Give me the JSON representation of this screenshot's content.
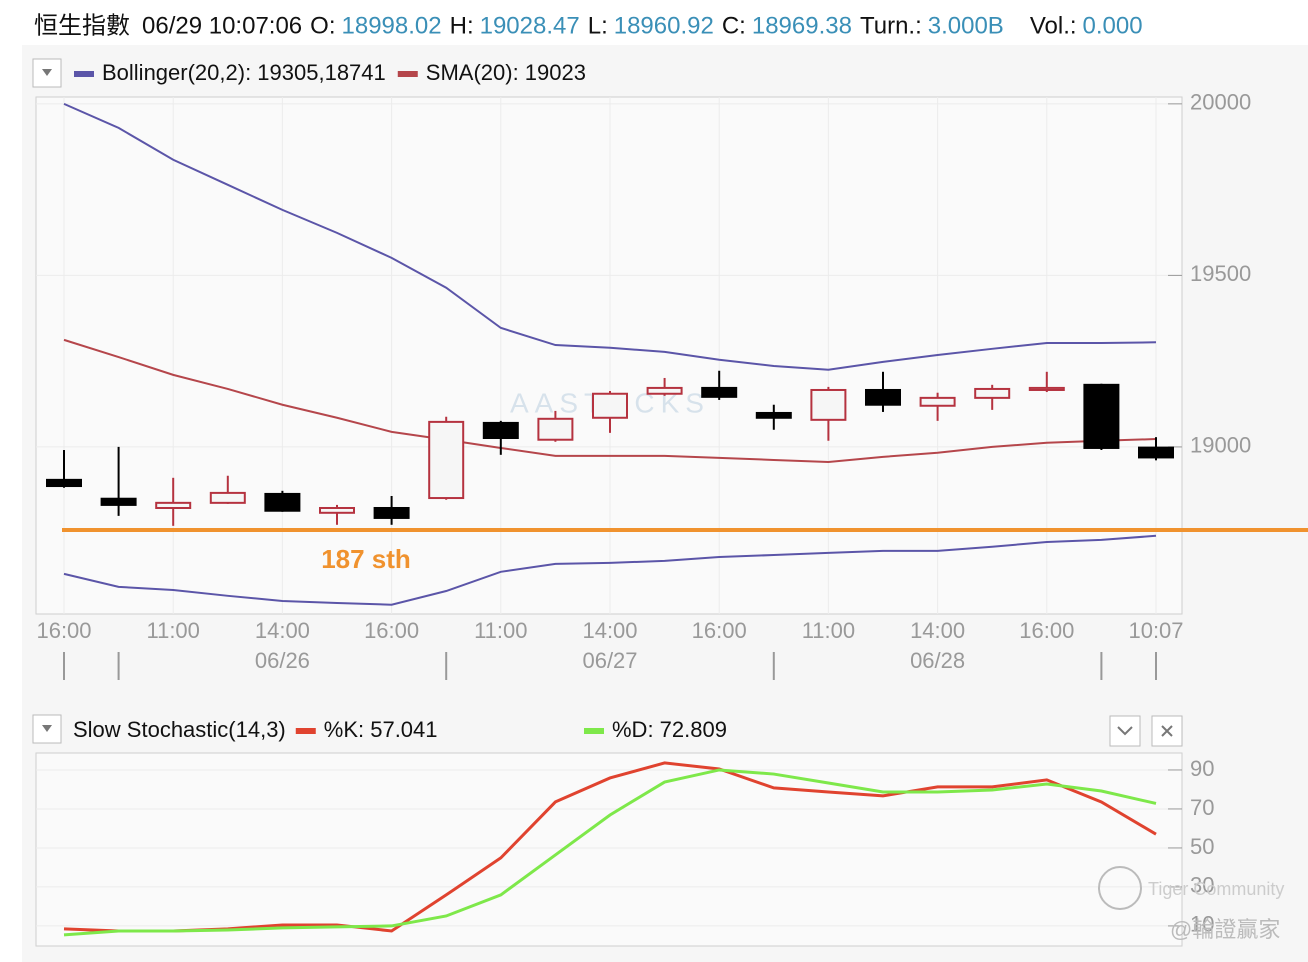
{
  "header": {
    "symbol": "恒生指數",
    "time": "06/29 10:07:06",
    "fields": [
      {
        "label": "O:",
        "value": "18998.02"
      },
      {
        "label": "H:",
        "value": "19028.47"
      },
      {
        "label": "L:",
        "value": "18960.92"
      },
      {
        "label": "C:",
        "value": "18969.38"
      },
      {
        "label": "Turn.:",
        "value": "3.000B"
      },
      {
        "label": "Vol.:",
        "value": "0.000"
      }
    ]
  },
  "watermarks": [
    "AASTOCKS",
    "Tiger Community",
    "@輪證贏家"
  ],
  "chart_data": [
    {
      "type": "candlestick",
      "categories": [
        "16:00",
        null,
        "11:00",
        null,
        "14:00",
        null,
        "16:00",
        null,
        "11:00",
        null,
        "14:00",
        null,
        "16:00",
        null,
        "11:00",
        null,
        "14:00",
        null,
        "16:00",
        null,
        "10:07"
      ],
      "dates": [
        null,
        null,
        null,
        null,
        "06/26",
        null,
        null,
        null,
        null,
        null,
        "06/27",
        null,
        null,
        null,
        null,
        null,
        "06/28",
        null,
        null,
        null,
        null
      ],
      "open": [
        18904,
        18849,
        18822,
        18837,
        18863,
        18808,
        18822,
        18851,
        19070,
        19021,
        19085,
        19155,
        19172,
        19099,
        19079,
        19166,
        19120,
        19143,
        19166,
        19181,
        18998.02
      ],
      "high": [
        18991,
        19000,
        18910,
        18916,
        18872,
        18831,
        18857,
        19088,
        19076,
        19105,
        19163,
        19201,
        19222,
        19123,
        19175,
        19219,
        19158,
        19181,
        19219,
        19184,
        19028.47
      ],
      "low": [
        18881,
        18799,
        18770,
        18834,
        18811,
        18773,
        18773,
        18846,
        18977,
        19015,
        19041,
        19149,
        19137,
        19050,
        19018,
        19102,
        19076,
        19108,
        19160,
        18991,
        18960.92
      ],
      "close": [
        18886,
        18831,
        18837,
        18866,
        18814,
        18822,
        18793,
        19073,
        19026,
        19082,
        19155,
        19172,
        19146,
        19085,
        19166,
        19123,
        19143,
        19169,
        19172,
        18997,
        18969.38
      ],
      "up_color": "#b5323f",
      "down_color": "#000000",
      "bollinger": {
        "name": "Bollinger(20,2): 19305,18741",
        "color": "#5b55a8",
        "upper": [
          20000,
          19930,
          19837,
          19764,
          19691,
          19624,
          19551,
          19464,
          19347,
          19297,
          19289,
          19277,
          19254,
          19236,
          19225,
          19248,
          19268,
          19286,
          19303,
          19303,
          19305
        ],
        "lower": [
          18630,
          18592,
          18583,
          18566,
          18551,
          18545,
          18540,
          18580,
          18636,
          18659,
          18662,
          18668,
          18679,
          18685,
          18691,
          18697,
          18697,
          18709,
          18723,
          18729,
          18741
        ]
      },
      "sma": {
        "name": "SMA(20): 19023",
        "color": "#b5464b",
        "values": [
          19312,
          19262,
          19210,
          19169,
          19123,
          19085,
          19044,
          19021,
          18997,
          18974,
          18974,
          18974,
          18968,
          18962,
          18956,
          18971,
          18983,
          19000,
          19012,
          19018,
          19023
        ]
      },
      "hline": {
        "value": 18758,
        "label": "187 sth",
        "color": "#f0922e"
      },
      "ylim": [
        18513,
        20020
      ],
      "yticks": [
        19000,
        19500,
        20000
      ],
      "grid": true
    },
    {
      "type": "line",
      "title": "Slow Stochastic(14,3)",
      "series": [
        {
          "name": "%K: 57.041",
          "color": "#e0432f",
          "values": [
            8.5,
            7.4,
            7.4,
            8.5,
            10.5,
            10.5,
            7.4,
            25.9,
            44.9,
            73.6,
            85.9,
            93.6,
            90.5,
            80.8,
            78.7,
            76.7,
            81.3,
            81.3,
            84.9,
            73.6,
            57.041
          ]
        },
        {
          "name": "%D: 72.809",
          "color": "#7ee84a",
          "values": [
            5.4,
            7.4,
            7.4,
            7.9,
            9.0,
            9.5,
            10.0,
            15.1,
            25.9,
            46.4,
            66.9,
            83.8,
            90.0,
            87.9,
            83.3,
            78.7,
            78.7,
            79.7,
            82.8,
            79.2,
            72.809
          ]
        }
      ],
      "ylim": [
        -0.3,
        98.7
      ],
      "yticks": [
        10,
        30,
        50,
        70,
        90
      ],
      "grid": true
    }
  ]
}
